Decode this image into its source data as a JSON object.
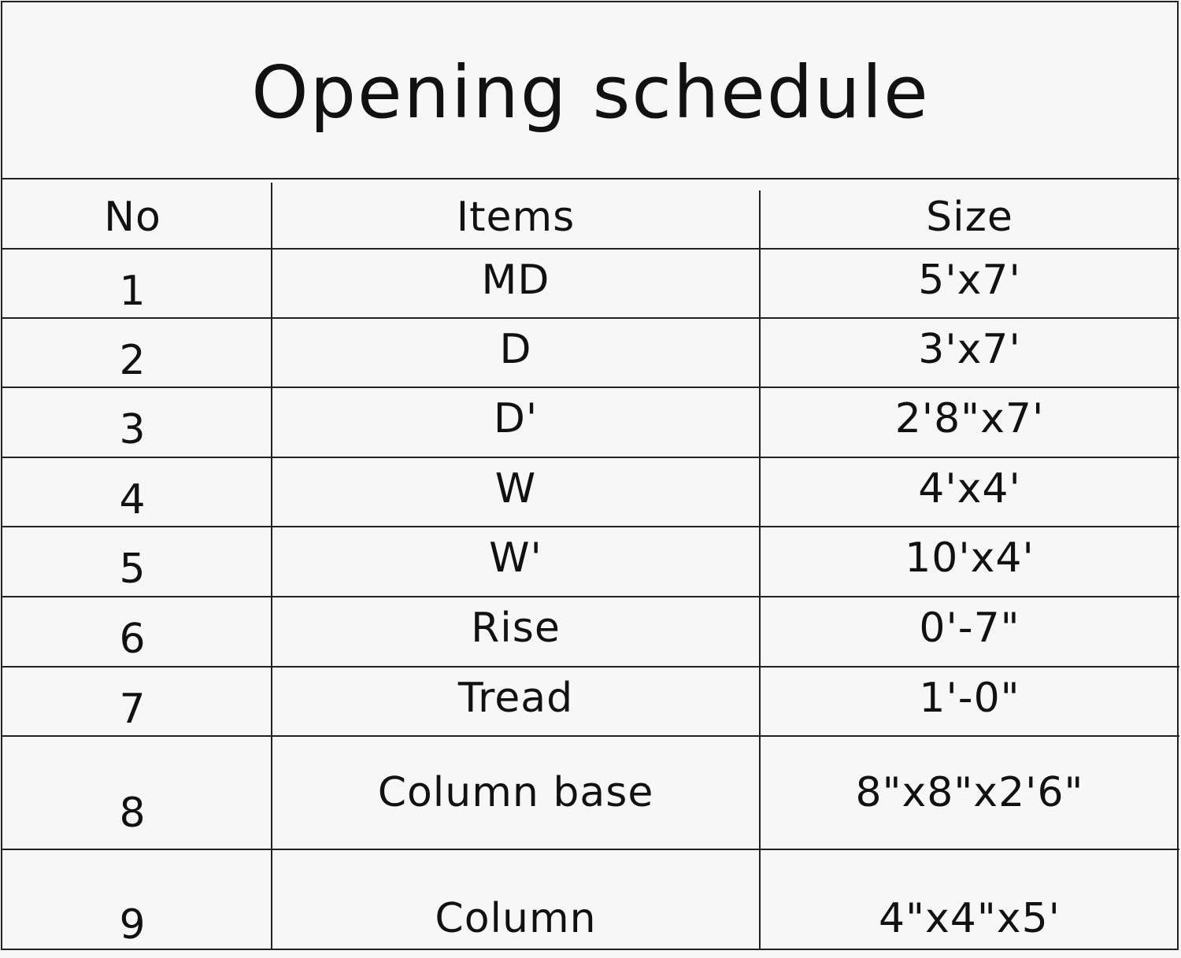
{
  "title": "Opening schedule",
  "columns": [
    "No",
    "Items",
    "Size"
  ],
  "rows": [
    {
      "no": "1",
      "item": "MD",
      "size": "5'x7'"
    },
    {
      "no": "2",
      "item": "D",
      "size": "3'x7'"
    },
    {
      "no": "3",
      "item": "D'",
      "size": "2'8\"x7'"
    },
    {
      "no": "4",
      "item": "W",
      "size": "4'x4'"
    },
    {
      "no": "5",
      "item": "W'",
      "size": "10'x4'"
    },
    {
      "no": "6",
      "item": "Rise",
      "size": "0'-7\""
    },
    {
      "no": "7",
      "item": "Tread",
      "size": "1'-0\""
    },
    {
      "no": "8",
      "item": "Column base",
      "size": "8\"x8\"x2'6\""
    },
    {
      "no": "9",
      "item": "Column",
      "size": "4\"x4\"x5'"
    }
  ]
}
